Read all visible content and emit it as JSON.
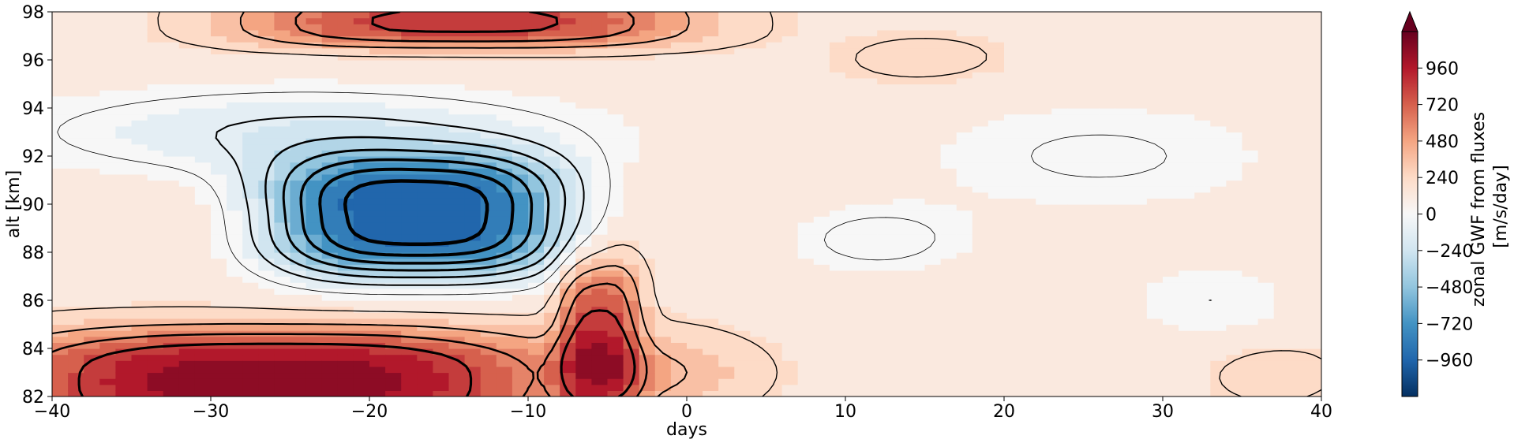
{
  "chart_data": {
    "type": "heatmap",
    "subtype": "filled-contour with line contours",
    "xlabel": "days",
    "ylabel": "alt [km]",
    "xlim": [
      -40,
      40
    ],
    "ylim": [
      82,
      98
    ],
    "x_ticks": [
      -40,
      -30,
      -20,
      -10,
      0,
      10,
      20,
      30,
      40
    ],
    "x_tick_labels": [
      "−40",
      "−30",
      "−20",
      "−10",
      "0",
      "10",
      "20",
      "30",
      "40"
    ],
    "y_ticks": [
      82,
      84,
      86,
      88,
      90,
      92,
      94,
      96,
      98
    ],
    "y_tick_labels": [
      "82",
      "84",
      "86",
      "88",
      "90",
      "92",
      "94",
      "96",
      "98"
    ],
    "grid": false,
    "colormap": "RdBu_r",
    "colorbar": {
      "label": "zonal GWF from fluxes\n[m/s/day]",
      "range": [
        -1200,
        1200
      ],
      "extend": "max",
      "ticks": [
        -960,
        -720,
        -480,
        -240,
        0,
        240,
        480,
        720,
        960
      ],
      "tick_labels": [
        "−960",
        "−720",
        "−480",
        "−240",
        "0",
        "240",
        "480",
        "720",
        "960"
      ]
    },
    "field_features": [
      {
        "kind": "negative core",
        "day": -17,
        "alt": 89.5,
        "value": -1000
      },
      {
        "kind": "negative band",
        "day_range": [
          -40,
          -5
        ],
        "alt_range": [
          91,
          95
        ],
        "value": -250
      },
      {
        "kind": "positive low-altitude band",
        "day_range": [
          -40,
          -8
        ],
        "alt_range": [
          82,
          86
        ],
        "value": 900
      },
      {
        "kind": "positive upper band",
        "day_range": [
          -30,
          -5
        ],
        "alt_range": [
          96,
          98
        ],
        "value": 700
      },
      {
        "kind": "positive column",
        "day": -6,
        "alt_range": [
          82,
          88
        ],
        "value": 700
      },
      {
        "kind": "weak positive background",
        "day_range": [
          0,
          40
        ],
        "alt_range": [
          82,
          98
        ],
        "value": 150
      }
    ]
  }
}
